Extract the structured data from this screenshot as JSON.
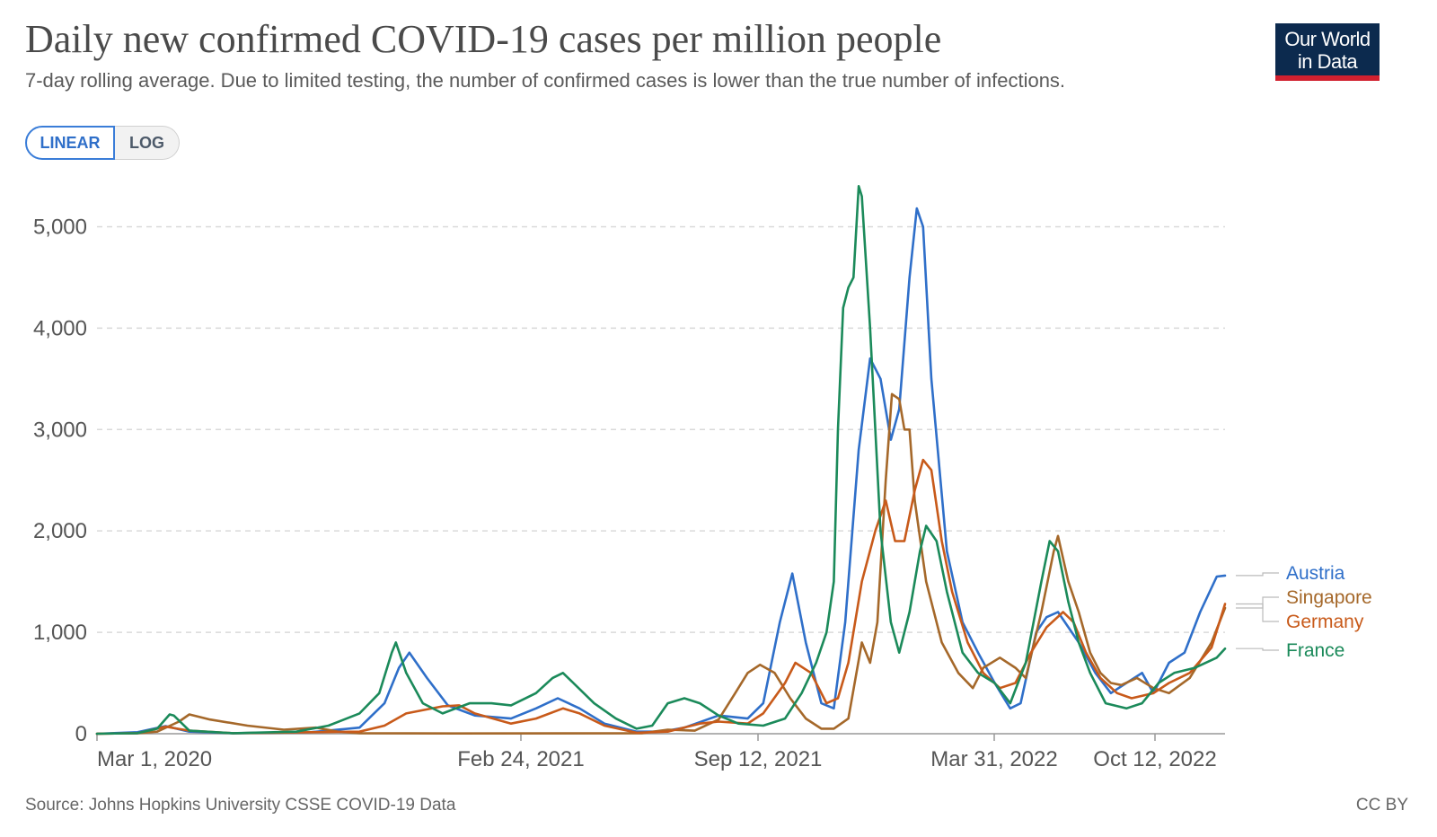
{
  "header": {
    "title": "Daily new confirmed COVID-19 cases per million people",
    "subtitle": "7-day rolling average. Due to limited testing, the number of confirmed cases is lower than the true number of infections.",
    "logo_line1": "Our World",
    "logo_line2": "in Data"
  },
  "scale_toggle": {
    "linear_label": "LINEAR",
    "log_label": "LOG",
    "selected": "LINEAR"
  },
  "footer": {
    "source": "Source: Johns Hopkins University CSSE COVID-19 Data",
    "license": "CC BY"
  },
  "chart_data": {
    "type": "line",
    "title": "Daily new confirmed COVID-19 cases per million people",
    "subtitle": "7-day rolling average. Due to limited testing, the number of confirmed cases is lower than the true number of infections.",
    "x_ticks": [
      "Mar 1, 2020",
      "Feb 24, 2021",
      "Sep 12, 2021",
      "Mar 31, 2022",
      "Oct 12, 2022"
    ],
    "x_range": [
      "2020-01-22",
      "2023-01-13"
    ],
    "y_ticks": [
      0,
      1000,
      2000,
      3000,
      4000,
      5000
    ],
    "y_tick_labels": [
      "0",
      "1,000",
      "2,000",
      "3,000",
      "4,000",
      "5,000"
    ],
    "ylim": [
      0,
      5500
    ],
    "grid": "horizontal dashed",
    "legend": "right",
    "series": [
      {
        "name": "Austria",
        "color": "#2f6fc9",
        "points": [
          [
            "2020-01-22",
            0
          ],
          [
            "2020-03-01",
            15
          ],
          [
            "2020-03-28",
            75
          ],
          [
            "2020-04-20",
            20
          ],
          [
            "2020-06-01",
            5
          ],
          [
            "2020-08-15",
            15
          ],
          [
            "2020-10-01",
            60
          ],
          [
            "2020-10-25",
            300
          ],
          [
            "2020-11-08",
            650
          ],
          [
            "2020-11-18",
            800
          ],
          [
            "2020-12-05",
            550
          ],
          [
            "2020-12-25",
            280
          ],
          [
            "2021-01-20",
            180
          ],
          [
            "2021-02-24",
            150
          ],
          [
            "2021-03-20",
            250
          ],
          [
            "2021-04-10",
            350
          ],
          [
            "2021-05-01",
            250
          ],
          [
            "2021-05-25",
            100
          ],
          [
            "2021-06-25",
            20
          ],
          [
            "2021-07-20",
            20
          ],
          [
            "2021-08-10",
            60
          ],
          [
            "2021-09-12",
            180
          ],
          [
            "2021-10-10",
            150
          ],
          [
            "2021-10-25",
            300
          ],
          [
            "2021-11-10",
            1100
          ],
          [
            "2021-11-22",
            1580
          ],
          [
            "2021-12-05",
            900
          ],
          [
            "2021-12-20",
            300
          ],
          [
            "2022-01-01",
            250
          ],
          [
            "2022-01-12",
            1100
          ],
          [
            "2022-01-25",
            2800
          ],
          [
            "2022-02-05",
            3700
          ],
          [
            "2022-02-15",
            3500
          ],
          [
            "2022-02-25",
            2900
          ],
          [
            "2022-03-05",
            3200
          ],
          [
            "2022-03-15",
            4500
          ],
          [
            "2022-03-22",
            5180
          ],
          [
            "2022-03-28",
            5000
          ],
          [
            "2022-04-05",
            3500
          ],
          [
            "2022-04-20",
            1800
          ],
          [
            "2022-05-05",
            1100
          ],
          [
            "2022-05-20",
            800
          ],
          [
            "2022-06-05",
            500
          ],
          [
            "2022-06-20",
            250
          ],
          [
            "2022-06-30",
            300
          ],
          [
            "2022-07-15",
            1000
          ],
          [
            "2022-07-25",
            1150
          ],
          [
            "2022-08-05",
            1200
          ],
          [
            "2022-08-25",
            900
          ],
          [
            "2022-09-10",
            600
          ],
          [
            "2022-09-25",
            400
          ],
          [
            "2022-10-10",
            500
          ],
          [
            "2022-10-25",
            600
          ],
          [
            "2022-11-05",
            400
          ],
          [
            "2022-11-20",
            700
          ],
          [
            "2022-12-05",
            800
          ],
          [
            "2022-12-20",
            1200
          ],
          [
            "2023-01-05",
            1550
          ],
          [
            "2023-01-13",
            1560
          ]
        ]
      },
      {
        "name": "Singapore",
        "color": "#a5682a",
        "points": [
          [
            "2020-01-22",
            0
          ],
          [
            "2020-03-01",
            5
          ],
          [
            "2020-03-20",
            20
          ],
          [
            "2020-04-10",
            120
          ],
          [
            "2020-04-20",
            190
          ],
          [
            "2020-05-10",
            140
          ],
          [
            "2020-06-15",
            80
          ],
          [
            "2020-07-20",
            40
          ],
          [
            "2020-08-20",
            60
          ],
          [
            "2020-09-10",
            20
          ],
          [
            "2020-10-01",
            5
          ],
          [
            "2020-12-31",
            3
          ],
          [
            "2021-06-30",
            5
          ],
          [
            "2021-07-25",
            40
          ],
          [
            "2021-08-20",
            30
          ],
          [
            "2021-09-12",
            140
          ],
          [
            "2021-09-28",
            400
          ],
          [
            "2021-10-10",
            600
          ],
          [
            "2021-10-22",
            680
          ],
          [
            "2021-11-05",
            600
          ],
          [
            "2021-11-20",
            350
          ],
          [
            "2021-12-05",
            150
          ],
          [
            "2021-12-20",
            50
          ],
          [
            "2022-01-01",
            50
          ],
          [
            "2022-01-15",
            150
          ],
          [
            "2022-01-28",
            900
          ],
          [
            "2022-02-05",
            700
          ],
          [
            "2022-02-12",
            1100
          ],
          [
            "2022-02-20",
            2500
          ],
          [
            "2022-02-26",
            3350
          ],
          [
            "2022-03-05",
            3300
          ],
          [
            "2022-03-10",
            3000
          ],
          [
            "2022-03-15",
            3000
          ],
          [
            "2022-03-20",
            2300
          ],
          [
            "2022-03-31",
            1500
          ],
          [
            "2022-04-15",
            900
          ],
          [
            "2022-05-01",
            600
          ],
          [
            "2022-05-15",
            450
          ],
          [
            "2022-05-25",
            650
          ],
          [
            "2022-06-10",
            750
          ],
          [
            "2022-06-25",
            650
          ],
          [
            "2022-07-05",
            550
          ],
          [
            "2022-07-20",
            1200
          ],
          [
            "2022-08-01",
            1800
          ],
          [
            "2022-08-05",
            1950
          ],
          [
            "2022-08-15",
            1500
          ],
          [
            "2022-08-25",
            1200
          ],
          [
            "2022-09-05",
            800
          ],
          [
            "2022-09-15",
            600
          ],
          [
            "2022-09-25",
            500
          ],
          [
            "2022-10-05",
            480
          ],
          [
            "2022-10-20",
            550
          ],
          [
            "2022-11-05",
            450
          ],
          [
            "2022-11-20",
            400
          ],
          [
            "2022-12-10",
            550
          ],
          [
            "2022-12-31",
            900
          ],
          [
            "2023-01-13",
            1240
          ]
        ]
      },
      {
        "name": "Germany",
        "color": "#c85a1a",
        "points": [
          [
            "2020-01-22",
            0
          ],
          [
            "2020-03-01",
            5
          ],
          [
            "2020-03-28",
            70
          ],
          [
            "2020-04-20",
            30
          ],
          [
            "2020-06-01",
            5
          ],
          [
            "2020-08-15",
            15
          ],
          [
            "2020-10-01",
            20
          ],
          [
            "2020-10-25",
            80
          ],
          [
            "2020-11-15",
            200
          ],
          [
            "2020-12-20",
            270
          ],
          [
            "2021-01-05",
            280
          ],
          [
            "2021-01-20",
            200
          ],
          [
            "2021-02-24",
            100
          ],
          [
            "2021-03-20",
            150
          ],
          [
            "2021-04-15",
            250
          ],
          [
            "2021-05-01",
            200
          ],
          [
            "2021-05-25",
            80
          ],
          [
            "2021-06-25",
            10
          ],
          [
            "2021-07-25",
            20
          ],
          [
            "2021-08-25",
            100
          ],
          [
            "2021-09-12",
            120
          ],
          [
            "2021-10-10",
            100
          ],
          [
            "2021-10-25",
            200
          ],
          [
            "2021-11-15",
            500
          ],
          [
            "2021-11-25",
            700
          ],
          [
            "2021-12-10",
            600
          ],
          [
            "2021-12-25",
            300
          ],
          [
            "2022-01-05",
            350
          ],
          [
            "2022-01-15",
            700
          ],
          [
            "2022-01-28",
            1500
          ],
          [
            "2022-02-10",
            2000
          ],
          [
            "2022-02-20",
            2300
          ],
          [
            "2022-03-01",
            1900
          ],
          [
            "2022-03-10",
            1900
          ],
          [
            "2022-03-20",
            2400
          ],
          [
            "2022-03-28",
            2700
          ],
          [
            "2022-04-05",
            2600
          ],
          [
            "2022-04-15",
            1900
          ],
          [
            "2022-04-25",
            1400
          ],
          [
            "2022-05-10",
            900
          ],
          [
            "2022-05-25",
            600
          ],
          [
            "2022-06-10",
            450
          ],
          [
            "2022-06-25",
            500
          ],
          [
            "2022-07-10",
            800
          ],
          [
            "2022-07-25",
            1050
          ],
          [
            "2022-08-10",
            1200
          ],
          [
            "2022-08-20",
            1100
          ],
          [
            "2022-09-01",
            800
          ],
          [
            "2022-09-15",
            550
          ],
          [
            "2022-10-01",
            400
          ],
          [
            "2022-10-15",
            350
          ],
          [
            "2022-11-05",
            400
          ],
          [
            "2022-11-20",
            500
          ],
          [
            "2022-12-10",
            600
          ],
          [
            "2022-12-31",
            850
          ],
          [
            "2023-01-13",
            1280
          ]
        ]
      },
      {
        "name": "France",
        "color": "#1b8a5a",
        "points": [
          [
            "2020-01-22",
            0
          ],
          [
            "2020-03-01",
            5
          ],
          [
            "2020-03-20",
            50
          ],
          [
            "2020-04-01",
            190
          ],
          [
            "2020-04-05",
            180
          ],
          [
            "2020-04-20",
            30
          ],
          [
            "2020-06-01",
            5
          ],
          [
            "2020-08-01",
            20
          ],
          [
            "2020-09-01",
            80
          ],
          [
            "2020-10-01",
            200
          ],
          [
            "2020-10-20",
            400
          ],
          [
            "2020-11-01",
            800
          ],
          [
            "2020-11-05",
            900
          ],
          [
            "2020-11-15",
            600
          ],
          [
            "2020-12-01",
            300
          ],
          [
            "2020-12-20",
            200
          ],
          [
            "2021-01-15",
            300
          ],
          [
            "2021-02-05",
            300
          ],
          [
            "2021-02-24",
            280
          ],
          [
            "2021-03-20",
            400
          ],
          [
            "2021-04-05",
            550
          ],
          [
            "2021-04-15",
            600
          ],
          [
            "2021-04-25",
            500
          ],
          [
            "2021-05-15",
            300
          ],
          [
            "2021-06-05",
            150
          ],
          [
            "2021-06-25",
            50
          ],
          [
            "2021-07-10",
            80
          ],
          [
            "2021-07-25",
            300
          ],
          [
            "2021-08-10",
            350
          ],
          [
            "2021-08-25",
            300
          ],
          [
            "2021-09-12",
            180
          ],
          [
            "2021-10-01",
            100
          ],
          [
            "2021-10-25",
            80
          ],
          [
            "2021-11-15",
            150
          ],
          [
            "2021-12-01",
            400
          ],
          [
            "2021-12-15",
            700
          ],
          [
            "2021-12-25",
            1000
          ],
          [
            "2022-01-01",
            1500
          ],
          [
            "2022-01-05",
            3000
          ],
          [
            "2022-01-10",
            4200
          ],
          [
            "2022-01-15",
            4400
          ],
          [
            "2022-01-20",
            4500
          ],
          [
            "2022-01-25",
            5400
          ],
          [
            "2022-01-28",
            5300
          ],
          [
            "2022-02-05",
            4000
          ],
          [
            "2022-02-15",
            2000
          ],
          [
            "2022-02-25",
            1100
          ],
          [
            "2022-03-05",
            800
          ],
          [
            "2022-03-15",
            1200
          ],
          [
            "2022-03-25",
            1800
          ],
          [
            "2022-03-31",
            2050
          ],
          [
            "2022-04-10",
            1900
          ],
          [
            "2022-04-20",
            1400
          ],
          [
            "2022-05-05",
            800
          ],
          [
            "2022-05-20",
            600
          ],
          [
            "2022-06-05",
            500
          ],
          [
            "2022-06-20",
            300
          ],
          [
            "2022-07-05",
            700
          ],
          [
            "2022-07-20",
            1500
          ],
          [
            "2022-07-28",
            1900
          ],
          [
            "2022-08-05",
            1800
          ],
          [
            "2022-08-15",
            1300
          ],
          [
            "2022-08-25",
            900
          ],
          [
            "2022-09-05",
            600
          ],
          [
            "2022-09-20",
            300
          ],
          [
            "2022-10-10",
            250
          ],
          [
            "2022-10-25",
            300
          ],
          [
            "2022-11-10",
            500
          ],
          [
            "2022-11-25",
            600
          ],
          [
            "2022-12-15",
            650
          ],
          [
            "2023-01-05",
            750
          ],
          [
            "2023-01-13",
            840
          ]
        ]
      }
    ]
  }
}
